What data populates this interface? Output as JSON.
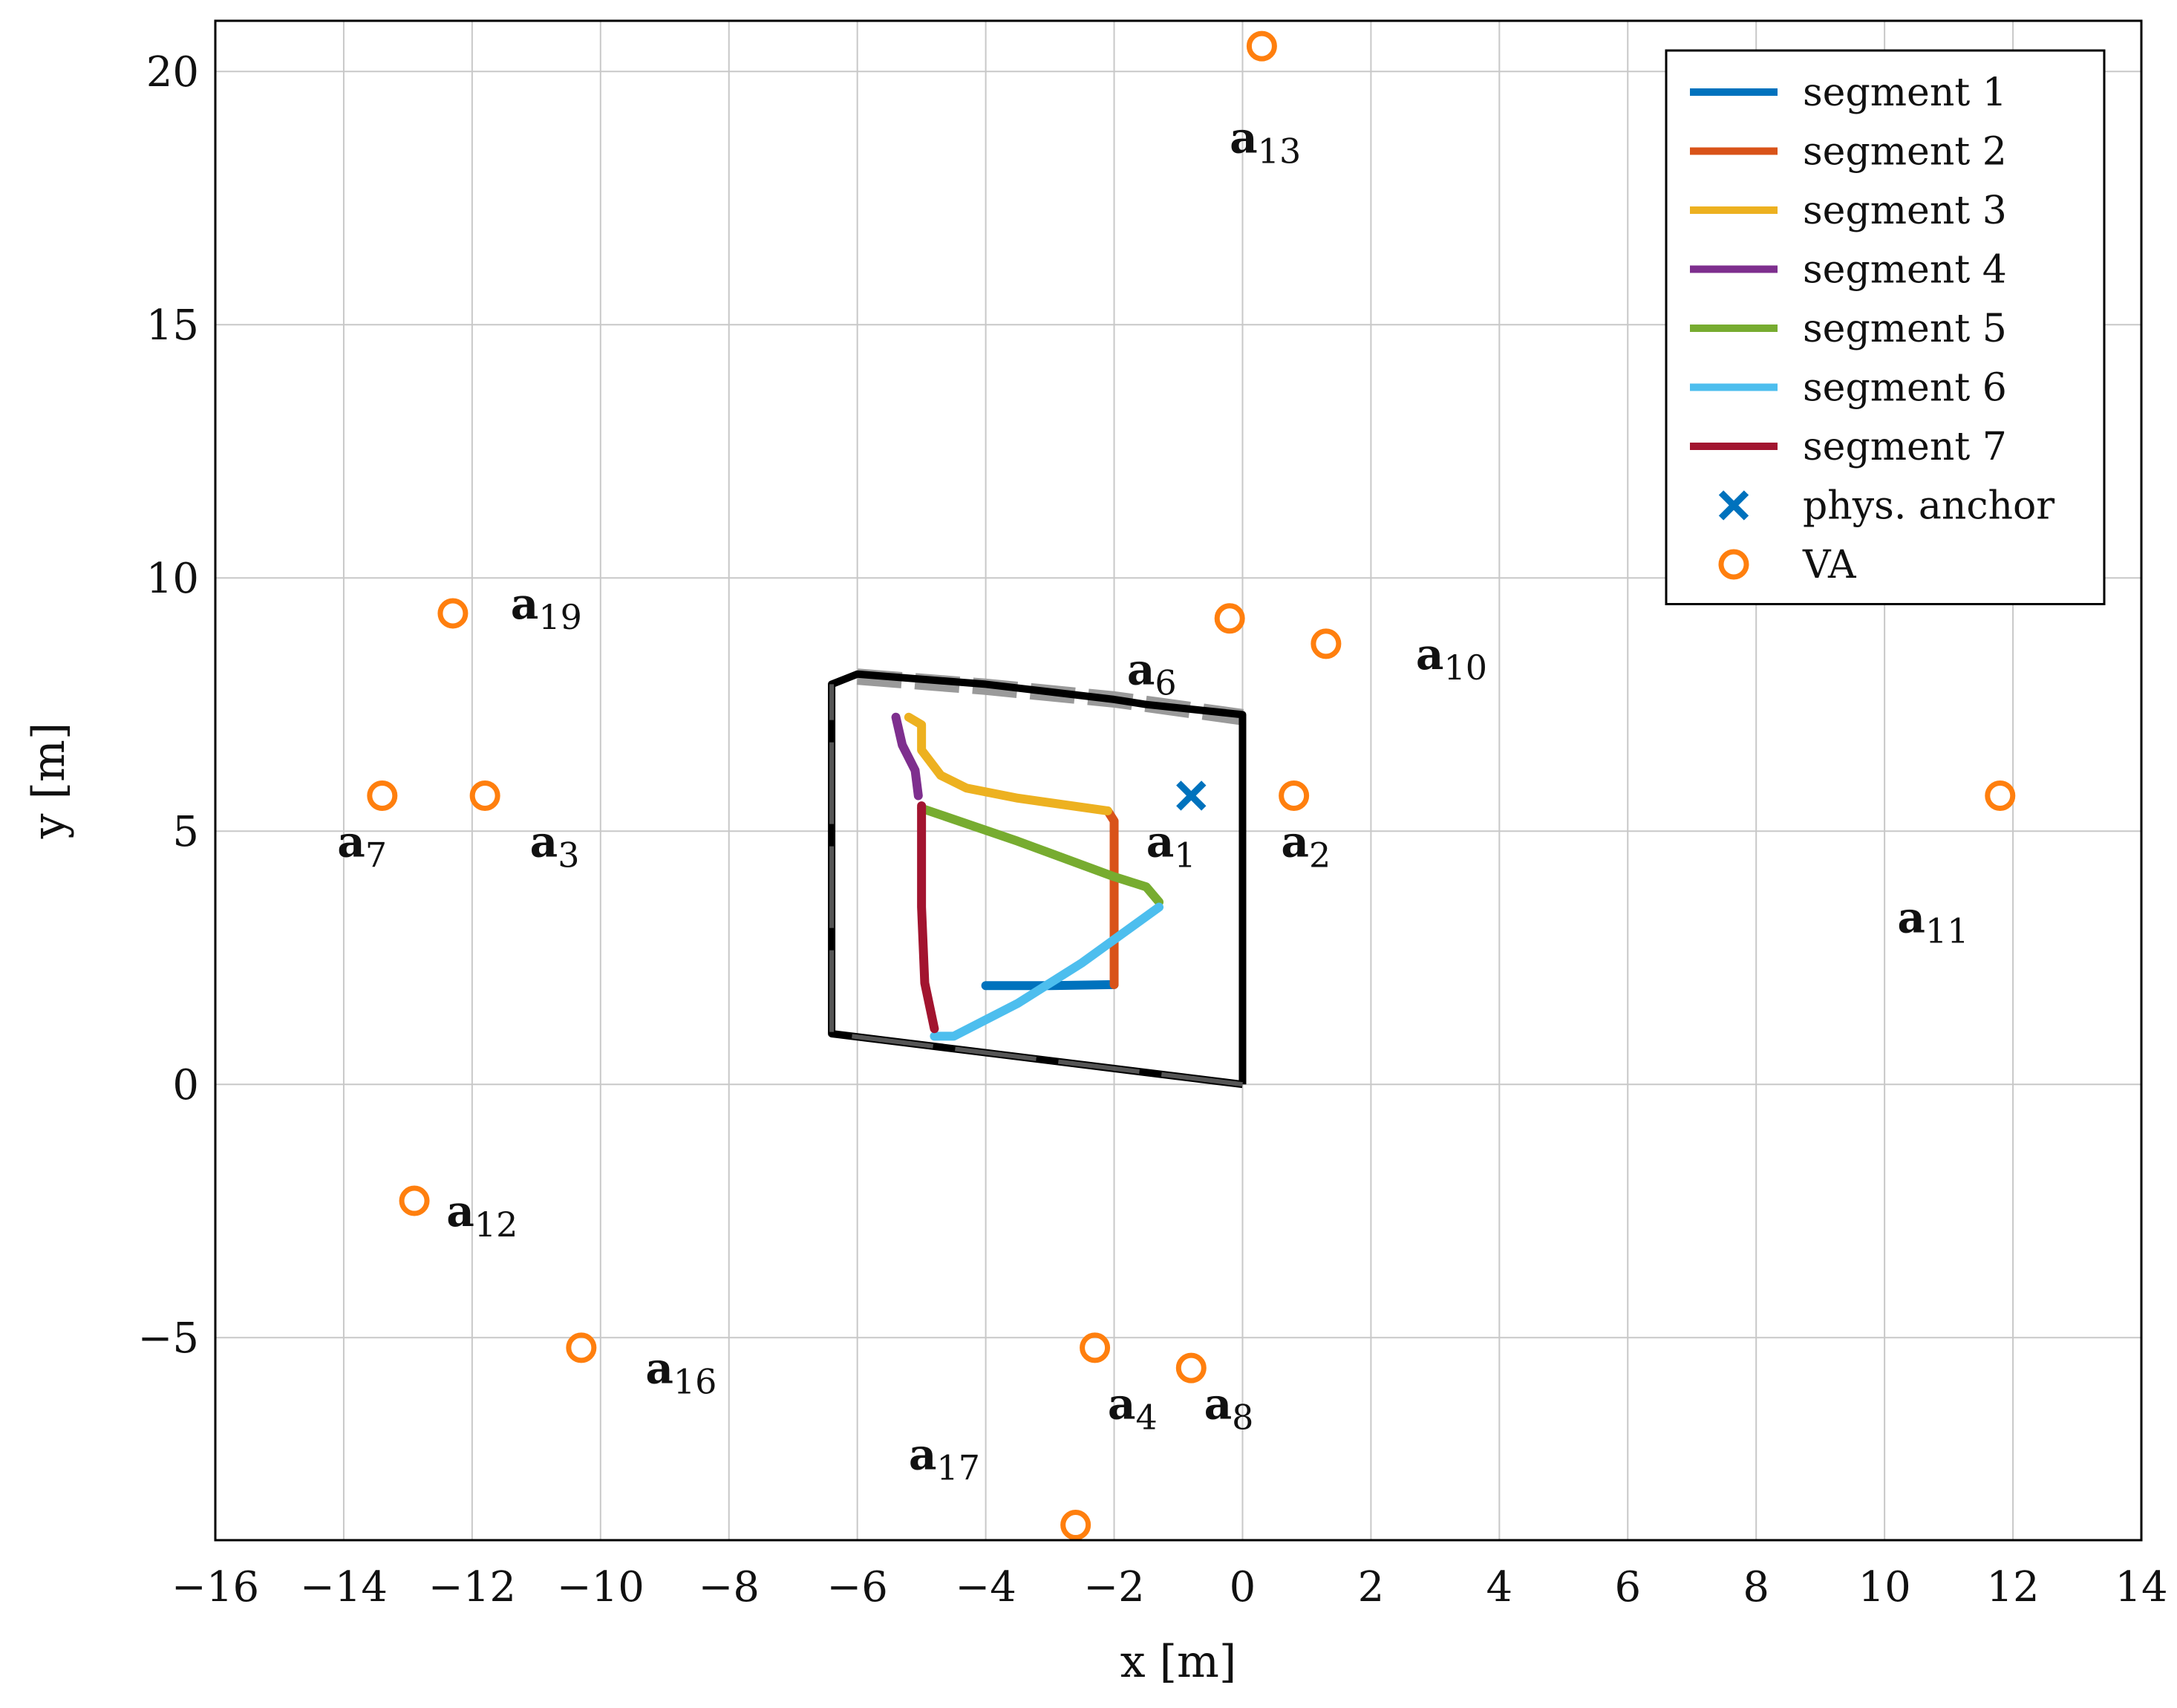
{
  "chart_data": {
    "type": "line",
    "title": "",
    "xlabel": "x [m]",
    "ylabel": "y [m]",
    "xlim": [
      -16,
      14
    ],
    "ylim": [
      -9,
      21
    ],
    "xticks": [
      -16,
      -14,
      -12,
      -10,
      -8,
      -6,
      -4,
      -2,
      0,
      2,
      4,
      6,
      8,
      10,
      12,
      14
    ],
    "yticks": [
      -5,
      0,
      5,
      10,
      15,
      20
    ],
    "xtick_labels": [
      "−16",
      "−14",
      "−12",
      "−10",
      "−8",
      "−6",
      "−4",
      "−2",
      "0",
      "2",
      "4",
      "6",
      "8",
      "10",
      "12",
      "14"
    ],
    "ytick_labels": [
      "−5",
      "0",
      "5",
      "10",
      "15",
      "20"
    ],
    "grid": true,
    "legend_position": "top-right",
    "colors": {
      "segment1": "#0072bd",
      "segment2": "#d95319",
      "segment3": "#edb120",
      "segment4": "#7e2f8e",
      "segment5": "#77ac30",
      "segment6": "#4dbeee",
      "segment7": "#a2142f",
      "anchor": "#0072bd",
      "va": "#ff7f0e",
      "room": "#000000"
    },
    "legend": [
      {
        "label": "segment 1",
        "kind": "line",
        "color": "#0072bd"
      },
      {
        "label": "segment 2",
        "kind": "line",
        "color": "#d95319"
      },
      {
        "label": "segment 3",
        "kind": "line",
        "color": "#edb120"
      },
      {
        "label": "segment 4",
        "kind": "line",
        "color": "#7e2f8e"
      },
      {
        "label": "segment 5",
        "kind": "line",
        "color": "#77ac30"
      },
      {
        "label": "segment 6",
        "kind": "line",
        "color": "#4dbeee"
      },
      {
        "label": "segment 7",
        "kind": "line",
        "color": "#a2142f"
      },
      {
        "label": "phys. anchor",
        "kind": "cross",
        "color": "#0072bd"
      },
      {
        "label": "VA",
        "kind": "circle",
        "color": "#ff7f0e"
      }
    ],
    "room_outline": [
      [
        0,
        0
      ],
      [
        -6.4,
        1
      ],
      [
        -6.4,
        7.9
      ],
      [
        -6,
        8.1
      ],
      [
        -4,
        7.9
      ],
      [
        -2,
        7.6
      ],
      [
        -1.5,
        7.5
      ],
      [
        0,
        7.3
      ],
      [
        0,
        0
      ]
    ],
    "room_dashed_top": [
      [
        -6,
        8.05
      ],
      [
        -4,
        7.85
      ],
      [
        -2,
        7.6
      ],
      [
        0,
        7.25
      ]
    ],
    "series": [
      {
        "name": "segment 1",
        "points": [
          [
            -4,
            1.95
          ],
          [
            -3,
            1.95
          ],
          [
            -2,
            1.97
          ]
        ]
      },
      {
        "name": "segment 2",
        "points": [
          [
            -2,
            1.97
          ],
          [
            -2,
            3
          ],
          [
            -2,
            4
          ],
          [
            -2,
            5.2
          ],
          [
            -2.1,
            5.4
          ]
        ]
      },
      {
        "name": "segment 3",
        "points": [
          [
            -2.1,
            5.4
          ],
          [
            -3.5,
            5.65
          ],
          [
            -4.3,
            5.85
          ],
          [
            -4.7,
            6.1
          ],
          [
            -5,
            6.6
          ],
          [
            -5,
            7.1
          ],
          [
            -5.2,
            7.25
          ]
        ]
      },
      {
        "name": "segment 4",
        "points": [
          [
            -5.4,
            7.25
          ],
          [
            -5.3,
            6.7
          ],
          [
            -5.1,
            6.2
          ],
          [
            -5.05,
            5.7
          ]
        ]
      },
      {
        "name": "segment 5",
        "points": [
          [
            -5,
            5.45
          ],
          [
            -3.5,
            4.8
          ],
          [
            -2,
            4.1
          ],
          [
            -1.5,
            3.9
          ],
          [
            -1.3,
            3.6
          ]
        ]
      },
      {
        "name": "segment 6",
        "points": [
          [
            -1.3,
            3.5
          ],
          [
            -2.5,
            2.4
          ],
          [
            -3.5,
            1.6
          ],
          [
            -4.5,
            0.95
          ],
          [
            -4.8,
            0.95
          ]
        ]
      },
      {
        "name": "segment 7",
        "points": [
          [
            -4.8,
            1.1
          ],
          [
            -4.95,
            2
          ],
          [
            -5,
            3.5
          ],
          [
            -5,
            5.5
          ]
        ]
      }
    ],
    "physical_anchor": [
      -0.8,
      5.7
    ],
    "virtual_anchors": [
      {
        "name": "a",
        "sub": "1",
        "label_at": [
          -1.5,
          4.5
        ],
        "point": null
      },
      {
        "name": "a",
        "sub": "2",
        "label_at": [
          0.6,
          4.5
        ],
        "point": [
          0.8,
          5.7
        ]
      },
      {
        "name": "a",
        "sub": "3",
        "label_at": [
          -11.1,
          4.5
        ],
        "point": [
          -11.8,
          5.7
        ]
      },
      {
        "name": "a",
        "sub": "4",
        "label_at": [
          -2.1,
          -6.6
        ],
        "point": [
          -2.3,
          -5.2
        ]
      },
      {
        "name": "a",
        "sub": "6",
        "label_at": [
          -1.8,
          7.9
        ],
        "point": [
          -0.2,
          9.2
        ]
      },
      {
        "name": "a",
        "sub": "7",
        "label_at": [
          -14.1,
          4.5
        ],
        "point": [
          -13.4,
          5.7
        ]
      },
      {
        "name": "a",
        "sub": "8",
        "label_at": [
          -0.6,
          -6.6
        ],
        "point": [
          -0.8,
          -5.6
        ]
      },
      {
        "name": "a",
        "sub": "10",
        "label_at": [
          2.7,
          8.2
        ],
        "point": [
          1.3,
          8.7
        ]
      },
      {
        "name": "a",
        "sub": "11",
        "label_at": [
          10.2,
          3.0
        ],
        "point": [
          11.8,
          5.7
        ]
      },
      {
        "name": "a",
        "sub": "12",
        "label_at": [
          -12.4,
          -2.8
        ],
        "point": [
          -12.9,
          -2.3
        ]
      },
      {
        "name": "a",
        "sub": "13",
        "label_at": [
          -0.2,
          18.4
        ],
        "point": [
          0.3,
          20.5
        ]
      },
      {
        "name": "a",
        "sub": "16",
        "label_at": [
          -9.3,
          -5.9
        ],
        "point": [
          -10.3,
          -5.2
        ]
      },
      {
        "name": "a",
        "sub": "17",
        "label_at": [
          -5.2,
          -7.6
        ],
        "point": [
          -2.6,
          -8.7
        ]
      },
      {
        "name": "a",
        "sub": "19",
        "label_at": [
          -11.4,
          9.2
        ],
        "point": [
          -12.3,
          9.3
        ]
      }
    ]
  }
}
